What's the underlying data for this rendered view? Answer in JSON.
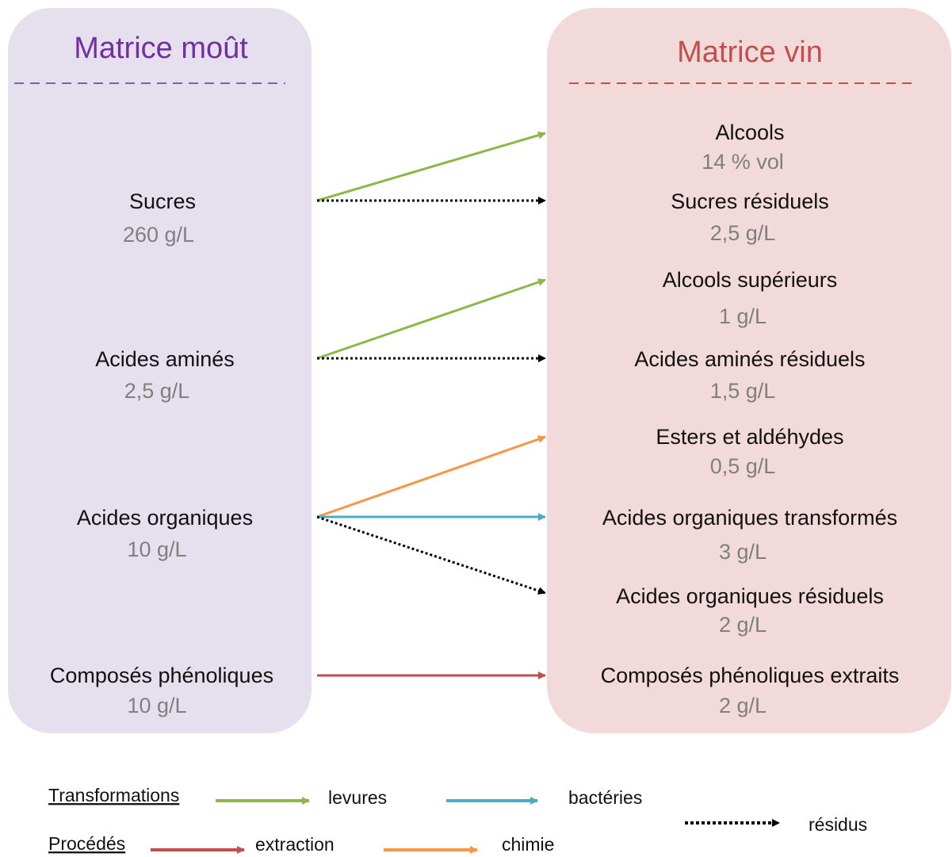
{
  "left": {
    "title": "Matrice moût",
    "items": [
      {
        "label": "Sucres",
        "value": "260 g/L"
      },
      {
        "label": "Acides aminés",
        "value": "2,5 g/L"
      },
      {
        "label": "Acides organiques",
        "value": "10 g/L"
      },
      {
        "label": "Composés phénoliques",
        "value": "10 g/L"
      }
    ]
  },
  "right": {
    "title": "Matrice vin",
    "items": [
      {
        "label": "Alcools",
        "value": "14 % vol"
      },
      {
        "label": "Sucres résiduels",
        "value": "2,5 g/L"
      },
      {
        "label": "Alcools supérieurs",
        "value": "1 g/L"
      },
      {
        "label": "Acides aminés résiduels",
        "value": "1,5 g/L"
      },
      {
        "label": "Esters et aldéhydes",
        "value": "0,5 g/L"
      },
      {
        "label": "Acides organiques transformés",
        "value": "3 g/L"
      },
      {
        "label": "Acides organiques résiduels",
        "value": "2 g/L"
      },
      {
        "label": "Composés phénoliques extraits",
        "value": "2 g/L"
      }
    ]
  },
  "legend": {
    "transformations": "Transformations",
    "levures": "levures",
    "bacteries": "bactéries",
    "procedes": "Procédés",
    "extraction": "extraction",
    "chimie": "chimie",
    "residus": "résidus"
  }
}
